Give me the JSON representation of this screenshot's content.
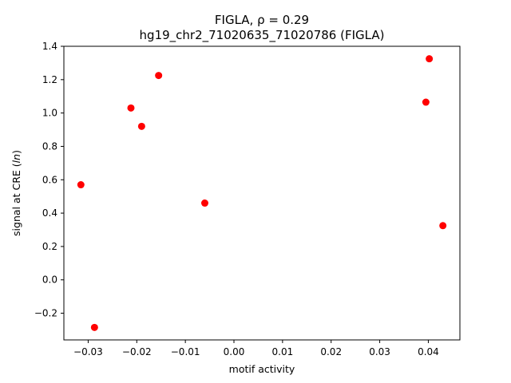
{
  "chart_data": {
    "type": "scatter",
    "title_line1": "FIGLA, ρ = 0.29",
    "title_line2": "hg19_chr2_71020635_71020786 (FIGLA)",
    "xlabel": "motif activity",
    "ylabel": "signal at CRE (ln)",
    "xlim": [
      -0.035,
      0.0465
    ],
    "ylim": [
      -0.36,
      1.4
    ],
    "xticks": [
      -0.03,
      -0.02,
      -0.01,
      0.0,
      0.01,
      0.02,
      0.03,
      0.04
    ],
    "xtick_labels": [
      "−0.03",
      "−0.02",
      "−0.01",
      "0.00",
      "0.01",
      "0.02",
      "0.03",
      "0.04"
    ],
    "yticks": [
      -0.2,
      0.0,
      0.2,
      0.4,
      0.6,
      0.8,
      1.0,
      1.2,
      1.4
    ],
    "ytick_labels": [
      "−0.2",
      "0.0",
      "0.2",
      "0.4",
      "0.6",
      "0.8",
      "1.0",
      "1.2",
      "1.4"
    ],
    "grid": false,
    "legend": "none",
    "marker_color": "#ff0000",
    "points": [
      {
        "x": -0.0315,
        "y": 0.57
      },
      {
        "x": -0.0287,
        "y": -0.285
      },
      {
        "x": -0.0212,
        "y": 1.03
      },
      {
        "x": -0.019,
        "y": 0.92
      },
      {
        "x": -0.0155,
        "y": 1.225
      },
      {
        "x": -0.006,
        "y": 0.46
      },
      {
        "x": 0.0395,
        "y": 1.065
      },
      {
        "x": 0.0402,
        "y": 1.325
      },
      {
        "x": 0.043,
        "y": 0.325
      }
    ]
  }
}
